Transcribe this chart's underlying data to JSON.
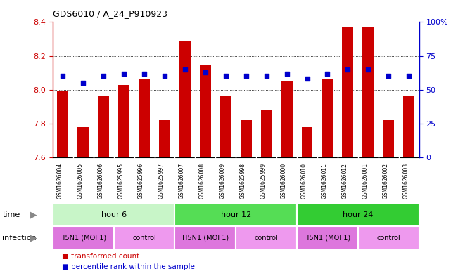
{
  "title": "GDS6010 / A_24_P910923",
  "samples": [
    "GSM1626004",
    "GSM1626005",
    "GSM1626006",
    "GSM1625995",
    "GSM1625996",
    "GSM1625997",
    "GSM1626007",
    "GSM1626008",
    "GSM1626009",
    "GSM1625998",
    "GSM1625999",
    "GSM1626000",
    "GSM1626010",
    "GSM1626011",
    "GSM1626012",
    "GSM1626001",
    "GSM1626002",
    "GSM1626003"
  ],
  "bar_values": [
    7.99,
    7.78,
    7.96,
    8.03,
    8.06,
    7.82,
    8.29,
    8.15,
    7.96,
    7.82,
    7.88,
    8.05,
    7.78,
    8.06,
    8.37,
    8.37,
    7.82,
    7.96
  ],
  "dot_values_pct": [
    60,
    55,
    60,
    62,
    62,
    60,
    65,
    63,
    60,
    60,
    60,
    62,
    58,
    62,
    65,
    65,
    60,
    60
  ],
  "ylim": [
    7.6,
    8.4
  ],
  "yticks": [
    7.6,
    7.8,
    8.0,
    8.2,
    8.4
  ],
  "y2lim": [
    0,
    100
  ],
  "y2ticks": [
    0,
    25,
    50,
    75,
    100
  ],
  "y2ticklabels": [
    "0",
    "25",
    "50",
    "75",
    "100%"
  ],
  "bar_color": "#cc0000",
  "dot_color": "#0000cc",
  "time_groups": [
    {
      "label": "hour 6",
      "start": 0,
      "end": 6,
      "color": "#c8f5c8"
    },
    {
      "label": "hour 12",
      "start": 6,
      "end": 12,
      "color": "#55dd55"
    },
    {
      "label": "hour 24",
      "start": 12,
      "end": 18,
      "color": "#33cc33"
    }
  ],
  "infection_groups": [
    {
      "label": "H5N1 (MOI 1)",
      "start": 0,
      "end": 3,
      "color": "#dd77dd"
    },
    {
      "label": "control",
      "start": 3,
      "end": 6,
      "color": "#ee99ee"
    },
    {
      "label": "H5N1 (MOI 1)",
      "start": 6,
      "end": 9,
      "color": "#dd77dd"
    },
    {
      "label": "control",
      "start": 9,
      "end": 12,
      "color": "#ee99ee"
    },
    {
      "label": "H5N1 (MOI 1)",
      "start": 12,
      "end": 15,
      "color": "#dd77dd"
    },
    {
      "label": "control",
      "start": 15,
      "end": 18,
      "color": "#ee99ee"
    }
  ]
}
